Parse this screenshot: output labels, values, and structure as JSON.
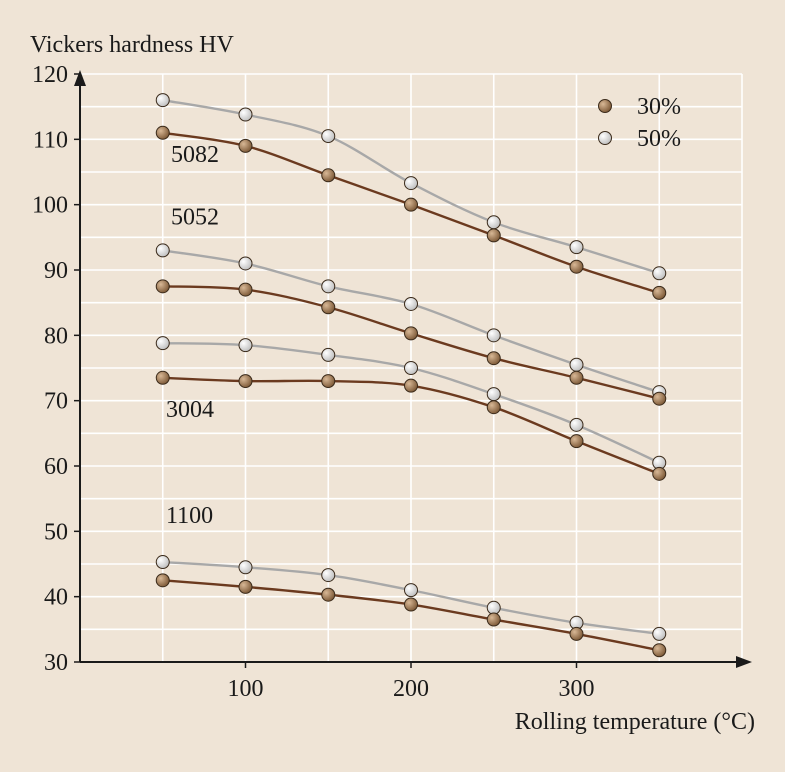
{
  "chart_data": {
    "type": "line",
    "ylabel": "Vickers hardness HV",
    "xlabel": "Rolling temperature (°C)",
    "xlim": [
      0,
      400
    ],
    "ylim": [
      30,
      120
    ],
    "xticks": [
      100,
      200,
      300
    ],
    "yticks": [
      30,
      40,
      50,
      60,
      70,
      80,
      90,
      100,
      110,
      120
    ],
    "x_gridlines": [
      50,
      100,
      150,
      200,
      250,
      300,
      350,
      400
    ],
    "y_gridlines": [
      35,
      40,
      45,
      50,
      55,
      60,
      65,
      70,
      75,
      80,
      85,
      90,
      95,
      100,
      105,
      110,
      115,
      120
    ],
    "grid": true,
    "legend_position": "top-right",
    "legend": [
      {
        "label": "30%",
        "key": "30"
      },
      {
        "label": "50%",
        "key": "50"
      }
    ],
    "x": [
      50,
      100,
      150,
      200,
      250,
      300,
      350
    ],
    "alloys": [
      {
        "name": "5082",
        "label_at": [
          55,
          106.5
        ],
        "series": {
          "30": [
            111,
            109,
            104.5,
            100,
            95.3,
            90.5,
            86.5
          ],
          "50": [
            116,
            113.8,
            110.5,
            103.3,
            97.3,
            93.5,
            89.5
          ]
        }
      },
      {
        "name": "5052",
        "label_at": [
          55,
          97
        ],
        "series": {
          "30": [
            87.5,
            87,
            84.3,
            80.3,
            76.5,
            73.5,
            70.3
          ],
          "50": [
            93,
            91,
            87.5,
            84.8,
            80,
            75.5,
            71.3
          ]
        }
      },
      {
        "name": "3004",
        "label_at": [
          52,
          67.5
        ],
        "series": {
          "30": [
            73.5,
            73,
            73,
            72.3,
            69,
            63.8,
            58.8
          ],
          "50": [
            78.8,
            78.5,
            77,
            75,
            71,
            66.3,
            60.5
          ]
        }
      },
      {
        "name": "1100",
        "label_at": [
          52,
          51.3
        ],
        "series": {
          "30": [
            42.5,
            41.5,
            40.3,
            38.8,
            36.5,
            34.3,
            31.8
          ],
          "50": [
            45.3,
            44.5,
            43.3,
            41,
            38.3,
            36,
            34.3
          ]
        }
      }
    ]
  },
  "colors": {
    "background": "#efe4d6",
    "grid": "#ffffff",
    "axis": "#1a1a1a",
    "line30": "#6b3a1f",
    "line50": "#a8a8a8",
    "marker30": "#8b6a48",
    "marker50": "#e8e8e8"
  }
}
